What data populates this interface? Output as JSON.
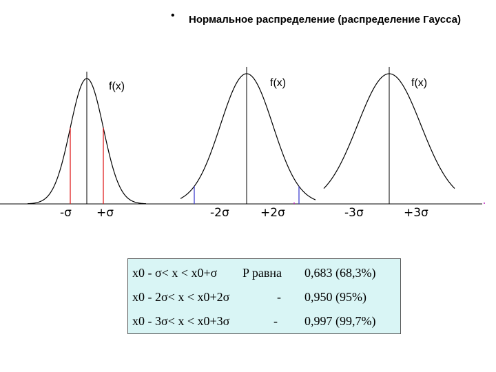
{
  "header": {
    "bullet": "•",
    "title": "Нормальное распределение (распределение Гаусса)"
  },
  "graphs": [
    {
      "f_label": "f(x)",
      "minus_label": "-σ",
      "plus_label": "+σ",
      "k": 1,
      "line_color": "#e02020"
    },
    {
      "f_label": "f(x)",
      "minus_label": "-2σ",
      "plus_label": "+2σ",
      "k": 2,
      "line_color": "#4040d0"
    },
    {
      "f_label": "f(x)",
      "minus_label": "-3σ",
      "plus_label": "+3σ",
      "k": 3,
      "line_color": "#c020c0"
    }
  ],
  "table": {
    "rows": [
      {
        "interval": "x0 - σ< x < x0+σ",
        "p_col": "P  равна",
        "value": "0,683  (68,3%)"
      },
      {
        "interval": "x0 - 2σ< x < x0+2σ",
        "p_col": "-",
        "value": "0,950  (95%)"
      },
      {
        "interval": "x0 - 3σ< x < x0+3σ",
        "p_col": "-",
        "value": "0,997  (99,7%)"
      }
    ]
  }
}
